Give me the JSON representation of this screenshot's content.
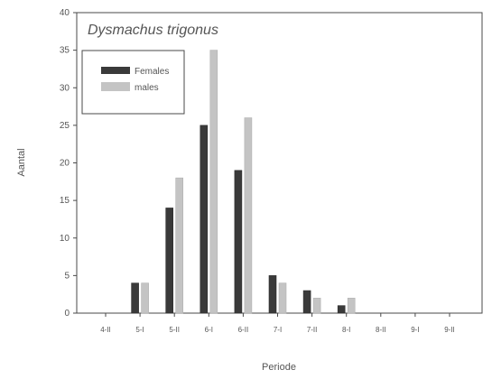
{
  "chart_data": {
    "type": "bar",
    "title": "Dysmachus trigonus",
    "xlabel": "Periode",
    "ylabel": "Aantal",
    "ylim": [
      0,
      40
    ],
    "yticks": [
      0,
      5,
      10,
      15,
      20,
      25,
      30,
      35,
      40
    ],
    "categories": [
      "4-II",
      "5-I",
      "5-II",
      "6-I",
      "6-II",
      "7-I",
      "7-II",
      "8-I",
      "8-II",
      "9-I",
      "9-II"
    ],
    "series": [
      {
        "name": "Females",
        "values": [
          0,
          4,
          14,
          25,
          19,
          5,
          3,
          1,
          0,
          0,
          0
        ]
      },
      {
        "name": "males",
        "values": [
          0,
          4,
          18,
          35,
          26,
          4,
          2,
          2,
          0,
          0,
          0
        ]
      }
    ],
    "legend_position": "top-left",
    "grid": false
  },
  "colors": {
    "females": "#3a3a3a",
    "males": "#c4c4c4",
    "axis": "#4a4a4a",
    "text": "#555555"
  }
}
